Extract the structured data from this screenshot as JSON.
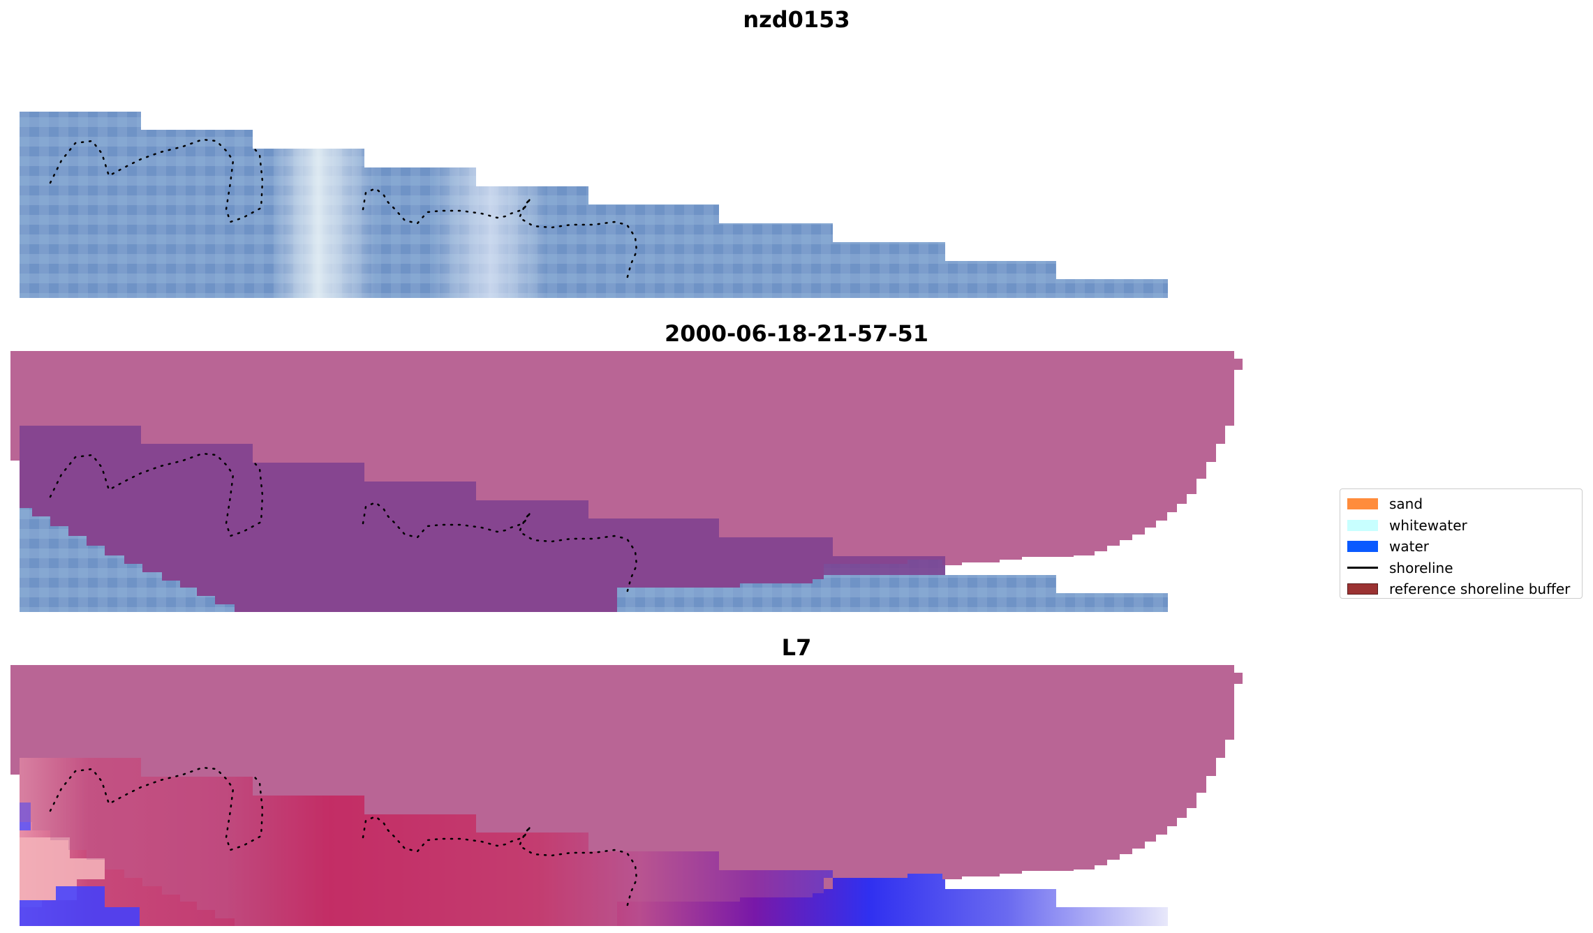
{
  "panels": [
    {
      "title": "nzd0153"
    },
    {
      "title": "2000-06-18-21-57-51"
    },
    {
      "title": "L7"
    }
  ],
  "legend": {
    "items": [
      {
        "label": "sand",
        "type": "patch",
        "color": "#FF8C3C"
      },
      {
        "label": "whitewater",
        "type": "patch",
        "color": "#C8FFFF"
      },
      {
        "label": "water",
        "type": "patch",
        "color": "#0A5AFF"
      },
      {
        "label": "shoreline",
        "type": "line",
        "color": "#000000"
      },
      {
        "label": "reference shoreline buffer",
        "type": "patch",
        "color": "#9B3232"
      }
    ]
  },
  "colors": {
    "imagery_base": "#7a9ccc",
    "buffer_overlay": "#b96595",
    "buffer_over_land": "#7d3f8f",
    "class_red": "#c8104c",
    "class_blue": "#2020ff",
    "class_white": "#eeeeff"
  }
}
